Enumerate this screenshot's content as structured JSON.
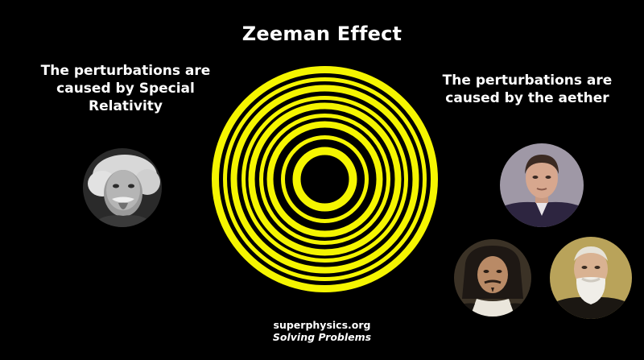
{
  "slide": {
    "title": "Zeeman Effect",
    "left_caption": "The perturbations are caused by Special Relativity",
    "right_caption": "The perturbations are caused by the aether",
    "footer": {
      "site": "superphysics.org",
      "tagline": "Solving Problems"
    },
    "colors": {
      "background": "#000000",
      "text": "#ffffff",
      "rings": "#f5f500"
    },
    "portraits": [
      "einstein-portrait",
      "bohr-portrait",
      "descartes-portrait",
      "lorentz-portrait"
    ]
  }
}
